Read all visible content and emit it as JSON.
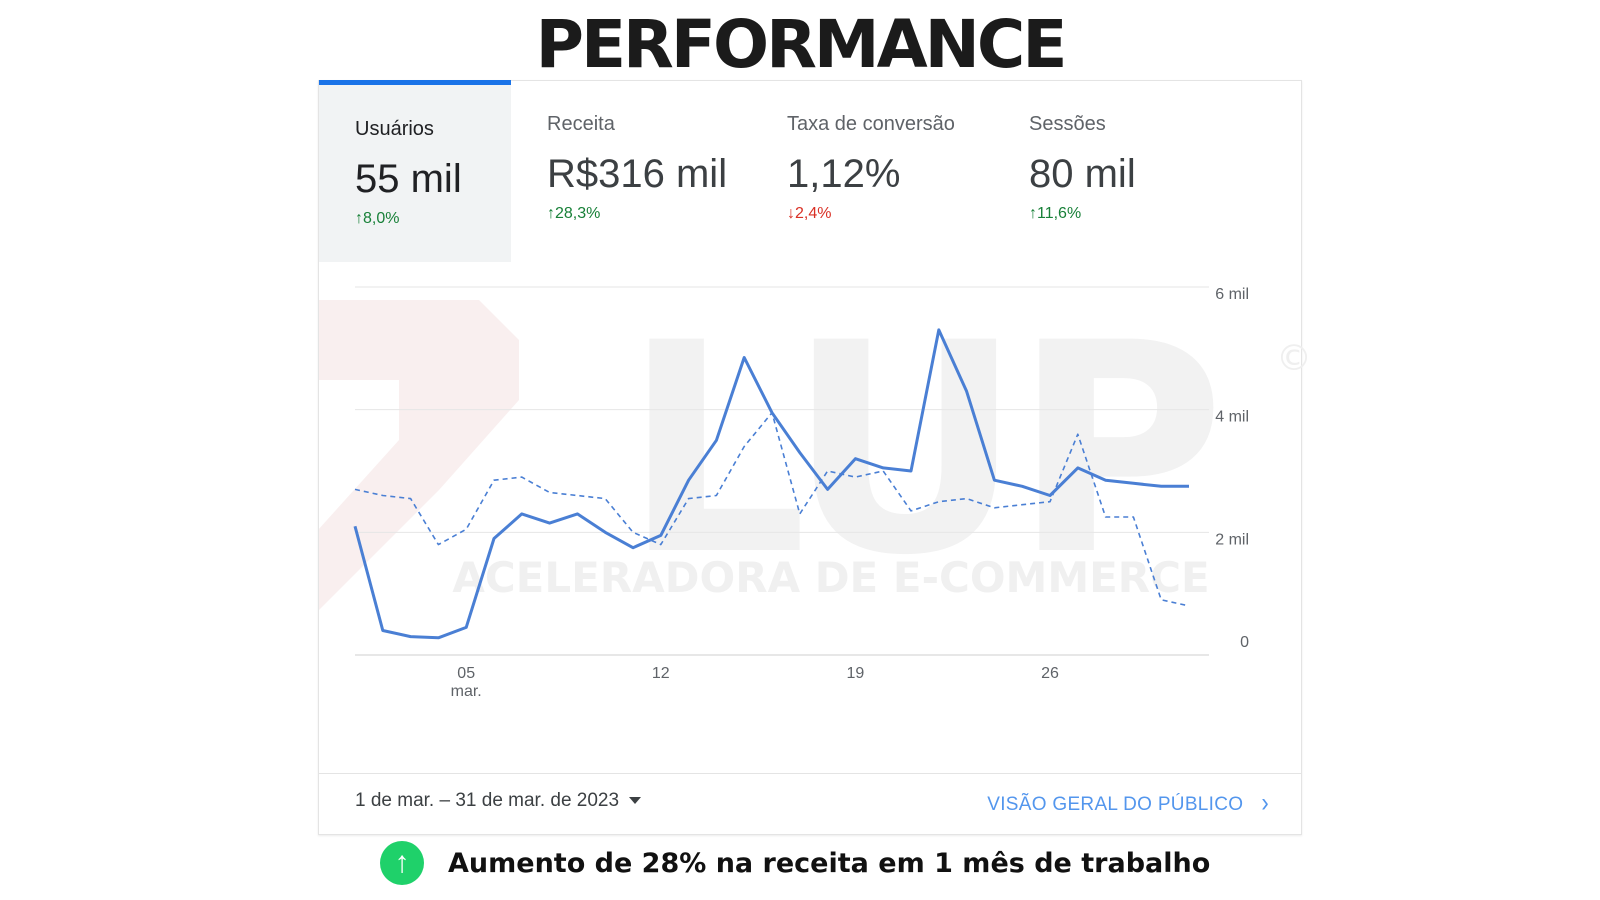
{
  "headline": "PERFORMANCE",
  "tabs": [
    {
      "label": "Usuários",
      "value": "55 mil",
      "delta": "8,0%",
      "direction": "up",
      "active": true
    },
    {
      "label": "Receita",
      "value": "R$316 mil",
      "delta": "28,3%",
      "direction": "up",
      "active": false
    },
    {
      "label": "Taxa de conversão",
      "value": "1,12%",
      "delta": "2,4%",
      "direction": "down",
      "active": false
    },
    {
      "label": "Sessões",
      "value": "80 mil",
      "delta": "11,6%",
      "direction": "up",
      "active": false
    }
  ],
  "watermark": {
    "brand": "LUP",
    "tagline": "ACELERADORA DE E-COMMERCE",
    "symbol": "©"
  },
  "chart_data": {
    "type": "line",
    "x": [
      1,
      2,
      3,
      4,
      5,
      6,
      7,
      8,
      9,
      10,
      11,
      12,
      13,
      14,
      15,
      16,
      17,
      18,
      19,
      20,
      21,
      22,
      23,
      24,
      25,
      26,
      27,
      28,
      29,
      30,
      31
    ],
    "series": [
      {
        "values": [
          2100,
          400,
          300,
          280,
          450,
          1900,
          2300,
          2150,
          2300,
          2000,
          1750,
          1950,
          2850,
          3500,
          4850,
          3950,
          3300,
          2700,
          3200,
          3050,
          3000,
          5300,
          4300,
          2850,
          2750,
          2600,
          3050,
          2850,
          2800,
          2750,
          2750
        ],
        "style": "solid",
        "color": "#4a7fd4"
      },
      {
        "values": [
          2700,
          2600,
          2550,
          1800,
          2050,
          2850,
          2900,
          2650,
          2600,
          2550,
          2000,
          1800,
          2550,
          2600,
          3400,
          3950,
          2300,
          3000,
          2900,
          3000,
          2350,
          2500,
          2550,
          2400,
          2450,
          2500,
          3600,
          2250,
          2250,
          900,
          800
        ],
        "style": "dashed",
        "color": "#4a7fd4"
      }
    ],
    "x_ticks": [
      {
        "x": 5,
        "label": "05",
        "sublabel": "mar."
      },
      {
        "x": 12,
        "label": "12"
      },
      {
        "x": 19,
        "label": "19"
      },
      {
        "x": 26,
        "label": "26"
      }
    ],
    "y_ticks": [
      {
        "v": 0,
        "label": "0"
      },
      {
        "v": 2000,
        "label": "2 mil"
      },
      {
        "v": 4000,
        "label": "4 mil"
      },
      {
        "v": 6000,
        "label": "6 mil"
      }
    ],
    "ylim": [
      0,
      6000
    ],
    "xlim": [
      1,
      31
    ],
    "grid": true
  },
  "footer": {
    "date_range": "1 de mar. – 31 de mar. de 2023",
    "overview_link": "VISÃO GERAL DO PÚBLICO",
    "chevron": "›"
  },
  "bottom": {
    "badge_symbol": "↑",
    "text": "Aumento de 28% na receita em 1 mês de trabalho"
  }
}
